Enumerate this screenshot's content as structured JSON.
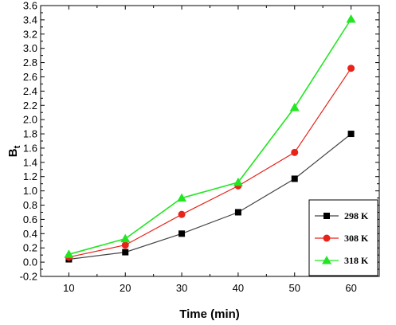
{
  "chart_data": {
    "type": "line",
    "xlabel": "Time (min)",
    "ylabel_main": "B",
    "ylabel_sub": "t",
    "x": [
      10,
      20,
      30,
      40,
      50,
      60
    ],
    "xlim": [
      5,
      65
    ],
    "ylim": [
      -0.2,
      3.6
    ],
    "xticks": [
      10,
      20,
      30,
      40,
      50,
      60
    ],
    "yticks": [
      -0.2,
      0.0,
      0.2,
      0.4,
      0.6,
      0.8,
      1.0,
      1.2,
      1.4,
      1.6,
      1.8,
      2.0,
      2.2,
      2.4,
      2.6,
      2.8,
      3.0,
      3.2,
      3.4,
      3.6
    ],
    "grid": false,
    "legend_position": "bottom-right",
    "series": [
      {
        "name": "298 K",
        "values": [
          0.04,
          0.14,
          0.4,
          0.7,
          1.17,
          1.8
        ],
        "color": "#000000",
        "line_color": "#444444",
        "marker": "square"
      },
      {
        "name": "308 K",
        "values": [
          0.07,
          0.24,
          0.67,
          1.07,
          1.54,
          2.72
        ],
        "color": "#e8231a",
        "line_color": "#e8231a",
        "marker": "circle"
      },
      {
        "name": "318 K",
        "values": [
          0.11,
          0.33,
          0.9,
          1.12,
          2.17,
          3.41
        ],
        "color": "#22e622",
        "line_color": "#22e622",
        "marker": "triangle"
      }
    ]
  }
}
